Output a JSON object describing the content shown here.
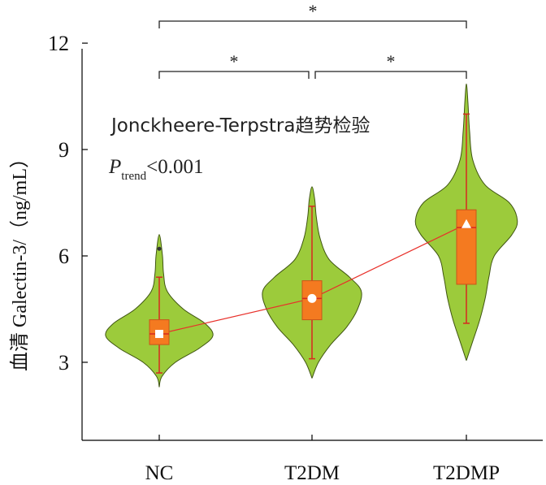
{
  "chart_data": {
    "type": "violin",
    "categories": [
      "NC",
      "T2DM",
      "T2DMP"
    ],
    "ylabel": "血清 Galectin-3/（ng/mL）",
    "ylim": [
      0.8,
      12.3
    ],
    "yticks": [
      3,
      6,
      9,
      12
    ],
    "annotation": {
      "test": "Jonckheere-Terpstra趋势检验",
      "p_main": "P",
      "p_sub": "trend",
      "p_value": "<0.001"
    },
    "significance": [
      {
        "from": "NC",
        "to": "T2DMP",
        "label": "*"
      },
      {
        "from": "NC",
        "to": "T2DM",
        "label": "*"
      },
      {
        "from": "T2DM",
        "to": "T2DMP",
        "label": "*"
      }
    ],
    "groups": [
      {
        "name": "NC",
        "mean": 3.8,
        "median": 3.8,
        "q1": 3.5,
        "q3": 4.2,
        "whisker_low": 2.7,
        "whisker_high": 5.4,
        "outliers": [
          6.2
        ],
        "mean_marker": "square",
        "density": [
          [
            2.3,
            0.0
          ],
          [
            2.6,
            0.05
          ],
          [
            3.0,
            0.3
          ],
          [
            3.4,
            0.75
          ],
          [
            3.75,
            1.0
          ],
          [
            4.1,
            0.85
          ],
          [
            4.5,
            0.45
          ],
          [
            5.0,
            0.15
          ],
          [
            5.5,
            0.08
          ],
          [
            6.0,
            0.06
          ],
          [
            6.6,
            0.0
          ]
        ]
      },
      {
        "name": "T2DM",
        "mean": 4.8,
        "median": 4.8,
        "q1": 4.2,
        "q3": 5.3,
        "whisker_low": 3.1,
        "whisker_high": 7.4,
        "outliers": [],
        "mean_marker": "circle",
        "density": [
          [
            2.55,
            0.0
          ],
          [
            3.0,
            0.12
          ],
          [
            3.5,
            0.35
          ],
          [
            4.0,
            0.65
          ],
          [
            4.5,
            0.85
          ],
          [
            5.0,
            0.92
          ],
          [
            5.4,
            0.7
          ],
          [
            5.9,
            0.32
          ],
          [
            6.5,
            0.15
          ],
          [
            7.1,
            0.08
          ],
          [
            7.6,
            0.05
          ],
          [
            7.95,
            0.0
          ]
        ]
      },
      {
        "name": "T2DMP",
        "mean": 6.9,
        "median": 6.8,
        "q1": 5.2,
        "q3": 7.3,
        "whisker_low": 4.1,
        "whisker_high": 10.0,
        "outliers": [],
        "mean_marker": "triangle",
        "density": [
          [
            3.05,
            0.0
          ],
          [
            3.6,
            0.12
          ],
          [
            4.2,
            0.25
          ],
          [
            4.8,
            0.35
          ],
          [
            5.4,
            0.42
          ],
          [
            6.0,
            0.52
          ],
          [
            6.6,
            0.85
          ],
          [
            7.0,
            0.95
          ],
          [
            7.5,
            0.8
          ],
          [
            8.0,
            0.35
          ],
          [
            8.7,
            0.12
          ],
          [
            9.5,
            0.06
          ],
          [
            10.3,
            0.03
          ],
          [
            10.85,
            0.0
          ]
        ]
      }
    ],
    "colors": {
      "violin_fill": "#9ccb3b",
      "violin_stroke": "#3f5512",
      "box_fill": "#f47a20",
      "box_stroke": "#c8561a",
      "whisker": "#d6291f",
      "trend_line": "#e8302a",
      "axis": "#000000",
      "marker_fill": "#ffffff"
    }
  }
}
